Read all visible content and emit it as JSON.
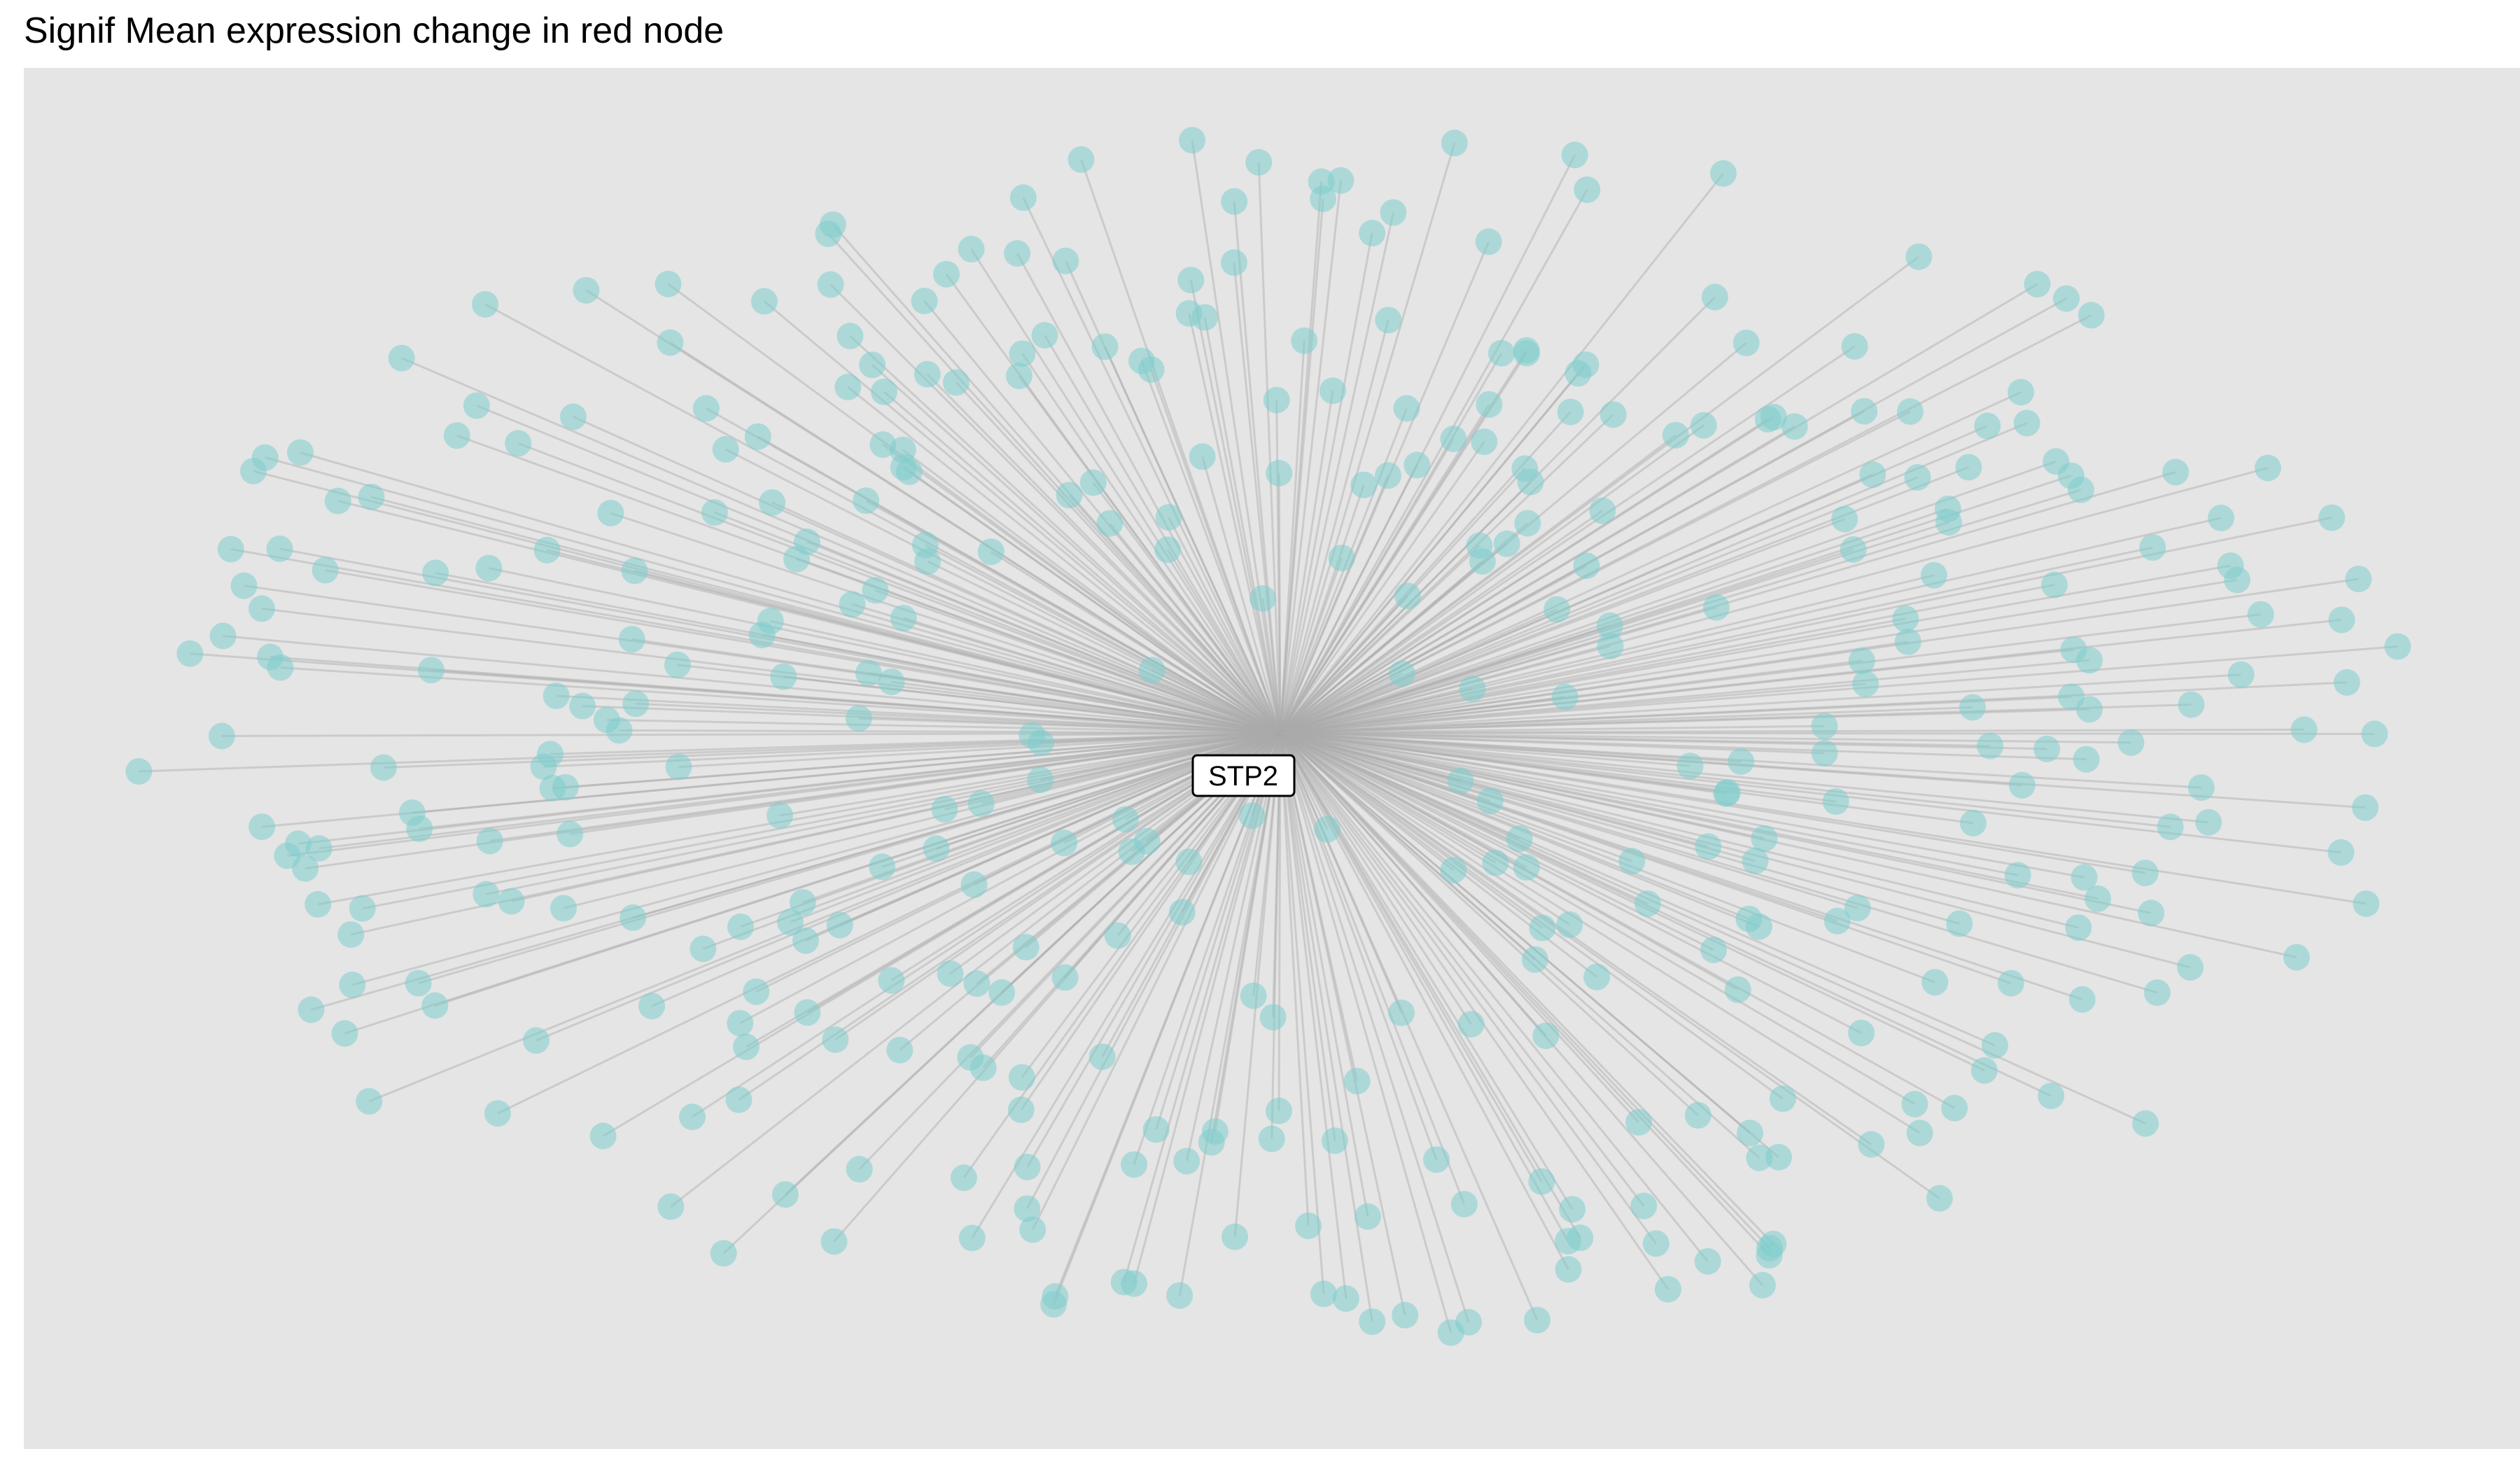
{
  "title": "Signif Mean expression change in red node",
  "network": {
    "hub_label": "STP2",
    "node_count": 398,
    "layout": "radial-star",
    "colors": {
      "panel_background": "#e5e5e5",
      "edge": "#aaaaaa",
      "node": "#7fcdcd",
      "label_fill": "#ffffff",
      "label_border": "#000000"
    }
  }
}
